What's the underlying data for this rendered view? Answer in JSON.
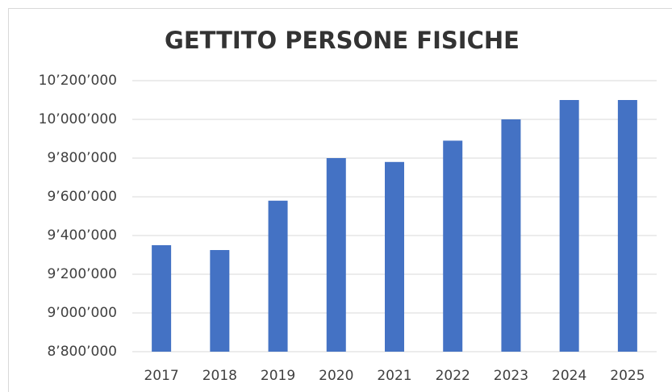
{
  "chart_data": {
    "type": "bar",
    "title": "GETTITO PERSONE FISICHE",
    "categories": [
      "2017",
      "2018",
      "2019",
      "2020",
      "2021",
      "2022",
      "2023",
      "2024",
      "2025"
    ],
    "values": [
      9350000,
      9325000,
      9580000,
      9800000,
      9780000,
      9890000,
      10000000,
      10100000,
      10100000
    ],
    "color": "#4472c4",
    "ylim": [
      8800000,
      10200000
    ],
    "yticks": [
      {
        "value": 8800000,
        "label": "8’800’000"
      },
      {
        "value": 9000000,
        "label": "9’000’000"
      },
      {
        "value": 9200000,
        "label": "9’200’000"
      },
      {
        "value": 9400000,
        "label": "9’400’000"
      },
      {
        "value": 9600000,
        "label": "9’600’000"
      },
      {
        "value": 9800000,
        "label": "9’800’000"
      },
      {
        "value": 10000000,
        "label": "10’000’000"
      },
      {
        "value": 10200000,
        "label": "10’200’000"
      }
    ],
    "grid": true
  }
}
